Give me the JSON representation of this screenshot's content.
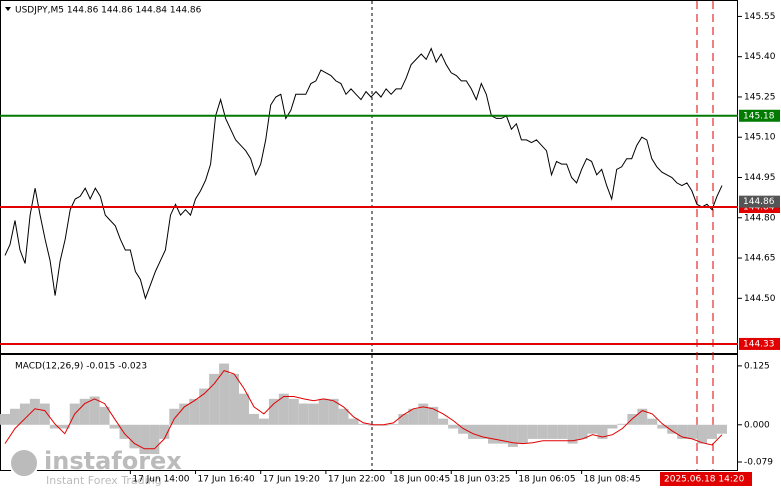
{
  "chart_data": [
    {
      "type": "line",
      "title": "USDJPY,M5  144.86 144.86 144.84 144.86",
      "color": "#000000",
      "values": [
        144.66,
        144.7,
        144.79,
        144.68,
        144.63,
        144.81,
        144.91,
        144.81,
        144.72,
        144.64,
        144.51,
        144.64,
        144.72,
        144.83,
        144.87,
        144.88,
        144.91,
        144.87,
        144.91,
        144.88,
        144.81,
        144.79,
        144.77,
        144.72,
        144.68,
        144.68,
        144.6,
        144.57,
        144.5,
        144.55,
        144.6,
        144.64,
        144.68,
        144.81,
        144.85,
        144.81,
        144.83,
        144.81,
        144.87,
        144.9,
        144.94,
        145.0,
        145.18,
        145.24,
        145.17,
        145.13,
        145.09,
        145.07,
        145.05,
        145.02,
        144.96,
        145.0,
        145.09,
        145.22,
        145.25,
        145.26,
        145.17,
        145.2,
        145.26,
        145.26,
        145.26,
        145.3,
        145.31,
        145.35,
        145.34,
        145.33,
        145.31,
        145.3,
        145.26,
        145.28,
        145.26,
        145.24,
        145.27,
        145.25,
        145.27,
        145.25,
        145.28,
        145.26,
        145.28,
        145.28,
        145.32,
        145.37,
        145.39,
        145.41,
        145.39,
        145.43,
        145.38,
        145.41,
        145.37,
        145.34,
        145.33,
        145.31,
        145.31,
        145.28,
        145.24,
        145.3,
        145.26,
        145.18,
        145.17,
        145.17,
        145.18,
        145.13,
        145.15,
        145.09,
        145.09,
        145.08,
        145.09,
        145.07,
        145.05,
        144.96,
        145.01,
        145.0,
        145.0,
        144.95,
        144.93,
        144.98,
        145.02,
        145.01,
        144.96,
        144.98,
        144.92,
        144.87,
        144.98,
        144.99,
        145.02,
        145.02,
        145.07,
        145.1,
        145.09,
        145.02,
        144.99,
        144.97,
        144.96,
        144.95,
        144.93,
        144.92,
        144.93,
        144.9,
        144.85,
        144.84,
        144.85,
        144.83,
        144.88,
        144.92
      ],
      "ylim": [
        144.3,
        145.6
      ],
      "yticks": [
        {
          "value": 145.55,
          "label": "145.55"
        },
        {
          "value": 145.4,
          "label": "145.40"
        },
        {
          "value": 145.25,
          "label": "145.25"
        },
        {
          "value": 145.1,
          "label": "145.10"
        },
        {
          "value": 144.95,
          "label": "144.95"
        },
        {
          "value": 144.8,
          "label": "144.80"
        },
        {
          "value": 144.65,
          "label": "144.65"
        },
        {
          "value": 144.5,
          "label": "144.50"
        }
      ],
      "xticks": [
        {
          "value": 25,
          "label": "17 Jun 14:00"
        },
        {
          "value": 38,
          "label": "17 Jun 16:40"
        },
        {
          "value": 51,
          "label": "17 Jun 19:20"
        },
        {
          "value": 64,
          "label": "17 Jun 22:00"
        },
        {
          "value": 77,
          "label": "18 Jun 00:45"
        },
        {
          "value": 89,
          "label": "18 Jun 03:25"
        },
        {
          "value": 102,
          "label": "18 Jun 06:05"
        },
        {
          "value": 115,
          "label": "18 Jun 08:45"
        }
      ],
      "levels": [
        {
          "value": 145.18,
          "color": "#007a00"
        },
        {
          "value": 144.84,
          "color": "#e00000"
        },
        {
          "value": 144.33,
          "color": "#e00000"
        }
      ],
      "last_price": 144.86,
      "cursor_label": "2025.06.18 14:20"
    },
    {
      "type": "macd",
      "title": "MACD(12,26,9) -0.015 -0.023",
      "series": [
        {
          "type": "bar",
          "color": "#c0c0c0",
          "values": [
            0.023,
            0.034,
            0.045,
            0.055,
            0.045,
            -0.008,
            -0.008,
            0.045,
            0.055,
            0.06,
            0.038,
            -0.008,
            -0.03,
            -0.05,
            -0.062,
            -0.062,
            -0.03,
            0.034,
            0.045,
            0.055,
            0.077,
            0.108,
            0.13,
            0.108,
            0.066,
            0.023,
            0.013,
            0.055,
            0.066,
            0.055,
            0.045,
            0.045,
            0.055,
            0.055,
            0.034,
            0.013,
            0.002,
            -0.002,
            -0.002,
            0.002,
            0.023,
            0.034,
            0.045,
            0.038,
            0.013,
            -0.008,
            -0.019,
            -0.03,
            -0.03,
            -0.04,
            -0.04,
            -0.047,
            -0.04,
            -0.03,
            -0.03,
            -0.03,
            -0.03,
            -0.04,
            -0.03,
            -0.019,
            -0.03,
            -0.008,
            0.002,
            0.023,
            0.034,
            0.013,
            -0.008,
            -0.019,
            -0.03,
            -0.03,
            -0.04,
            -0.03,
            -0.019
          ]
        },
        {
          "type": "line",
          "color": "#e00000",
          "values": [
            -0.04,
            -0.008,
            0.013,
            0.034,
            0.03,
            0.002,
            -0.019,
            0.023,
            0.045,
            0.055,
            0.045,
            0.013,
            -0.019,
            -0.04,
            -0.051,
            -0.051,
            -0.03,
            0.013,
            0.038,
            0.051,
            0.066,
            0.087,
            0.115,
            0.108,
            0.077,
            0.038,
            0.023,
            0.045,
            0.06,
            0.06,
            0.055,
            0.051,
            0.055,
            0.051,
            0.038,
            0.017,
            0.004,
            0,
            0,
            0.004,
            0.021,
            0.034,
            0.038,
            0.034,
            0.023,
            0.009,
            -0.008,
            -0.019,
            -0.026,
            -0.03,
            -0.034,
            -0.038,
            -0.04,
            -0.038,
            -0.034,
            -0.034,
            -0.034,
            -0.034,
            -0.03,
            -0.021,
            -0.026,
            -0.021,
            -0.008,
            0.013,
            0.03,
            0.023,
            0.002,
            -0.013,
            -0.026,
            -0.03,
            -0.038,
            -0.043,
            -0.021
          ]
        }
      ],
      "ylim": [
        -0.096,
        0.146
      ],
      "yticks": [
        {
          "value": 0.125,
          "label": "0.125"
        },
        {
          "value": 0,
          "label": "0.000"
        },
        {
          "value": -0.079,
          "label": "-0.079"
        }
      ]
    }
  ],
  "watermark": {
    "brand": "instaforex",
    "tagline": "Instant Forex Trading"
  }
}
